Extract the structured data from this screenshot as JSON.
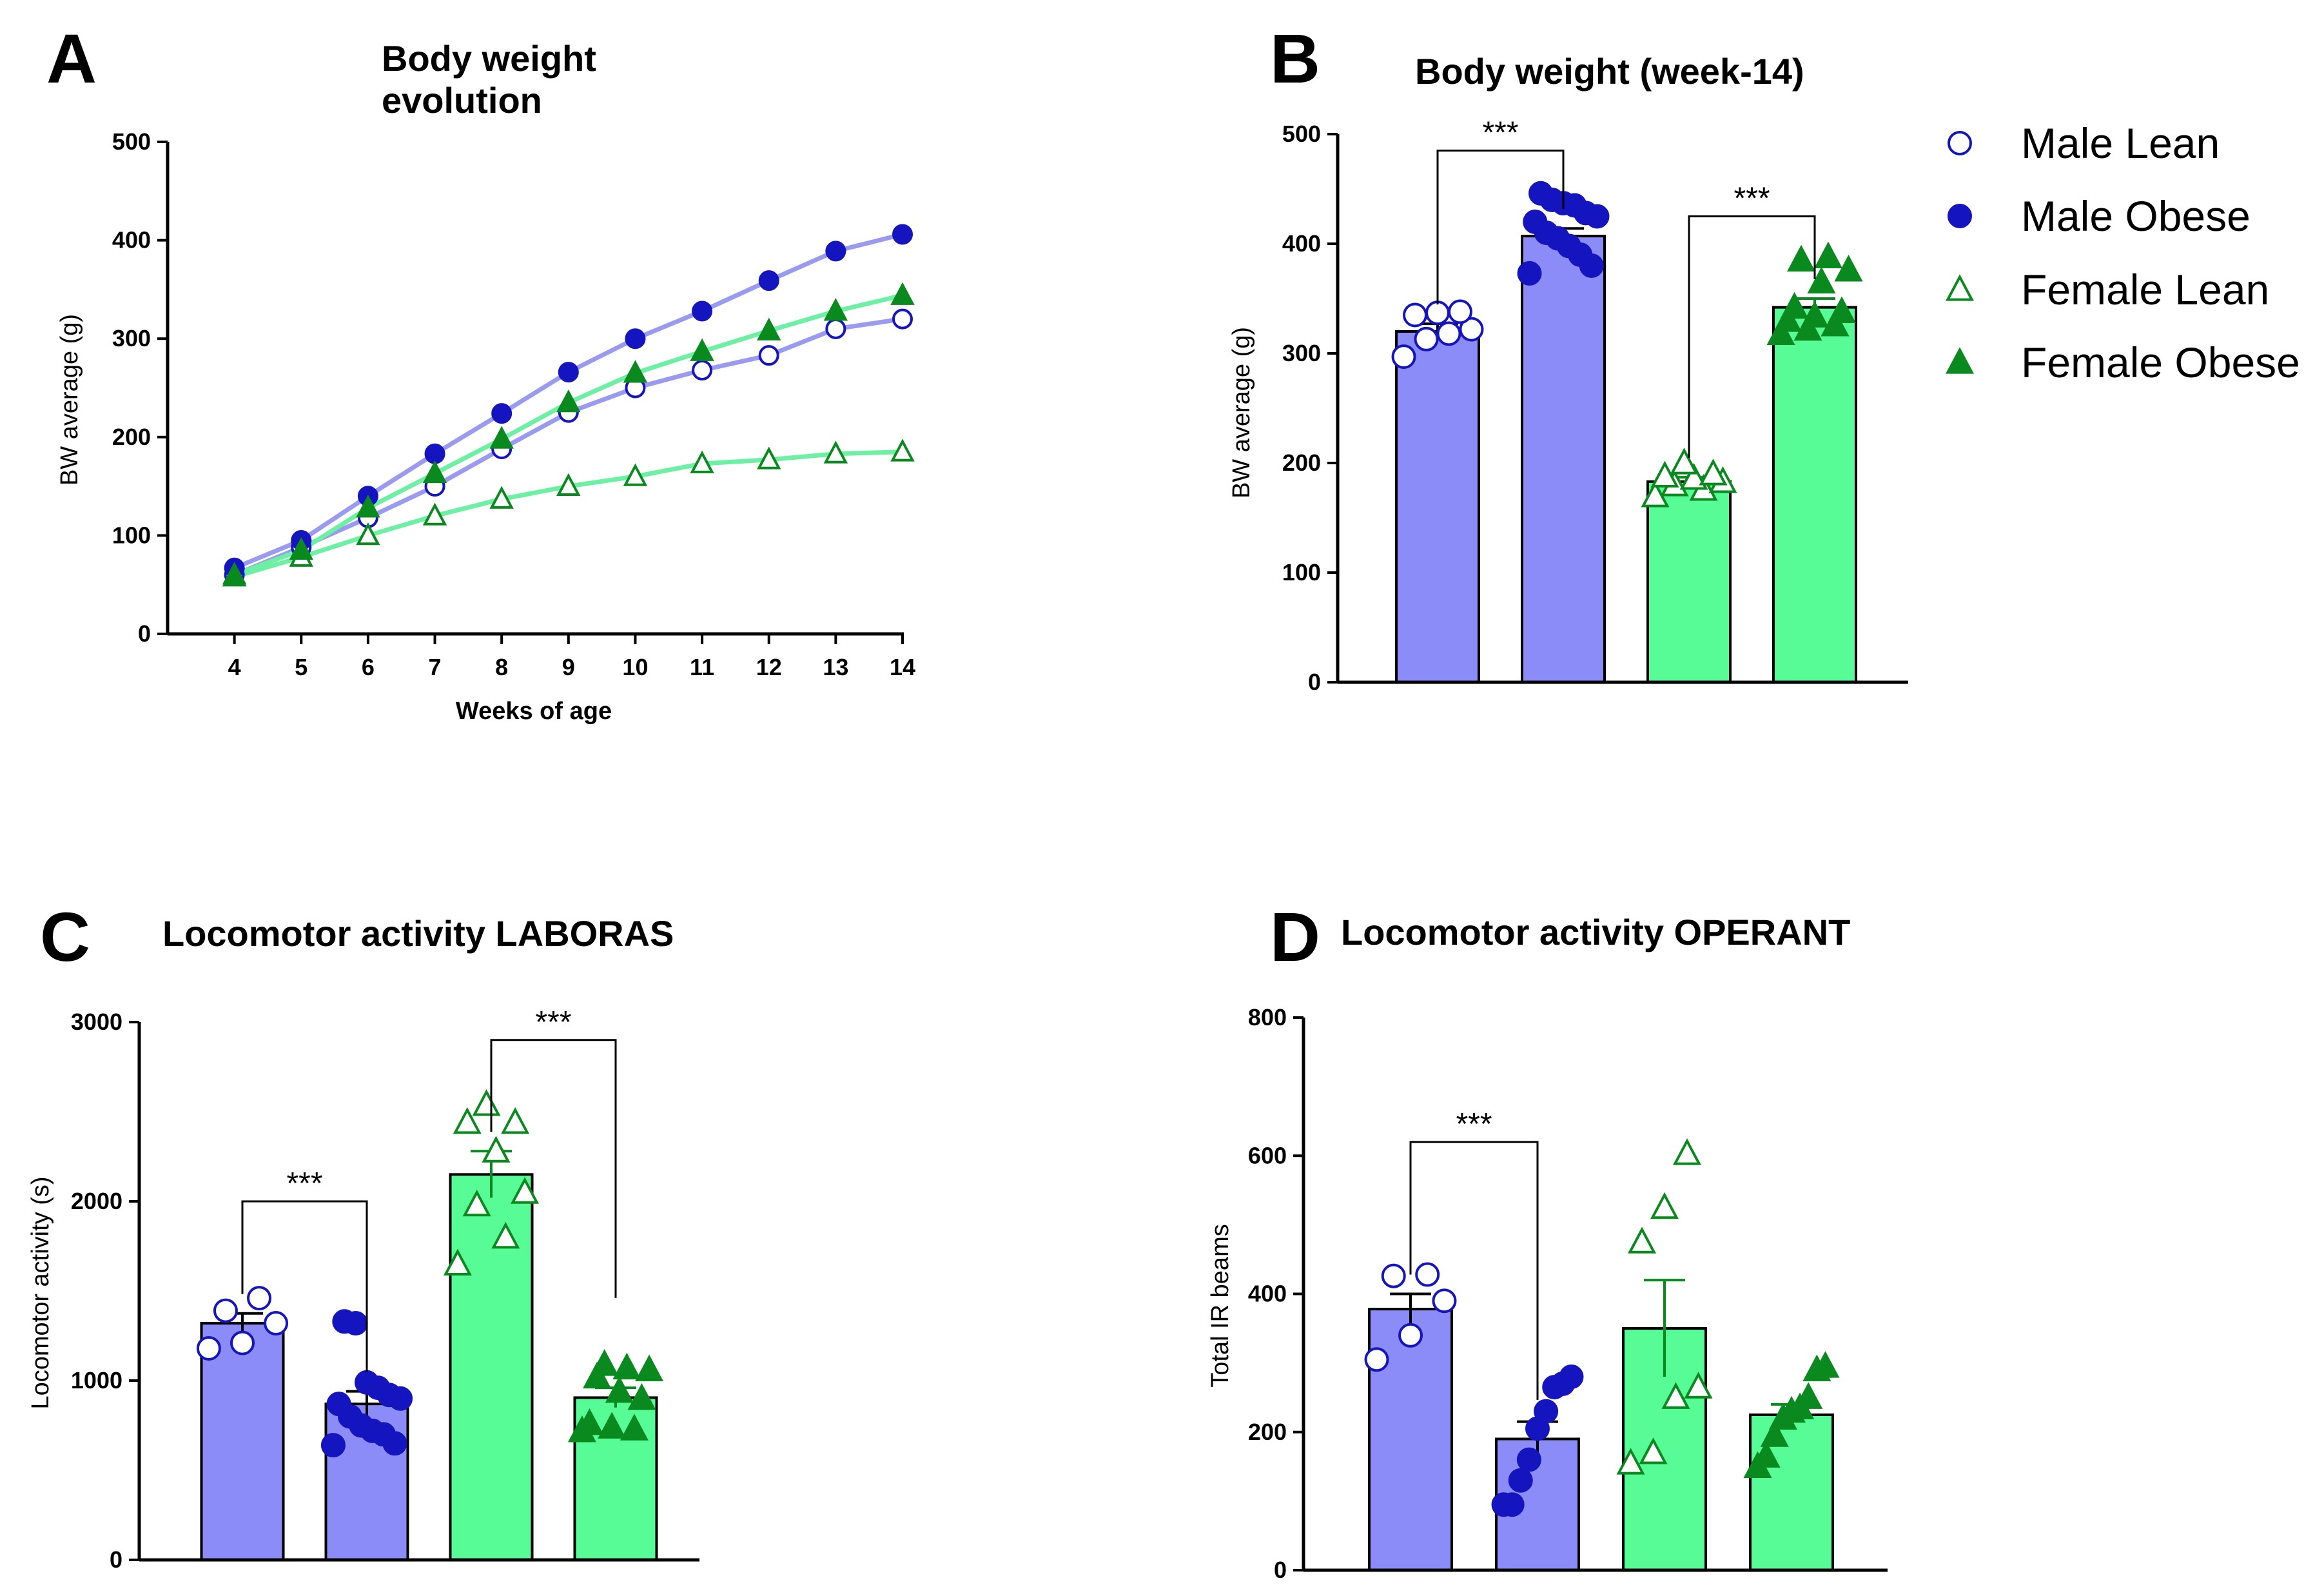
{
  "colors": {
    "male": "#1515c0",
    "female": "#0a8a1e",
    "male_bar": "#8c8cf8",
    "female_bar": "#57fc97",
    "male_line": "#9a9af0",
    "female_line": "#6ef0a4"
  },
  "legend": {
    "placement": "right of panel B",
    "items": [
      {
        "label": "Male Lean",
        "marker": "circle-open",
        "color": "#1515c0"
      },
      {
        "label": "Male Obese",
        "marker": "circle-filled",
        "color": "#1515c0"
      },
      {
        "label": "Female Lean",
        "marker": "triangle-open",
        "color": "#0a8a1e"
      },
      {
        "label": "Female Obese",
        "marker": "triangle-filled",
        "color": "#0a8a1e"
      }
    ]
  },
  "chart_data": [
    {
      "panel": "A",
      "type": "line",
      "title_lines": [
        "Body weight",
        "evolution"
      ],
      "xlabel": "Weeks of age",
      "ylabel": "BW average (g)",
      "x": [
        4,
        5,
        6,
        7,
        8,
        9,
        10,
        11,
        12,
        13,
        14
      ],
      "xlim": [
        3,
        14
      ],
      "ylim": [
        0,
        500
      ],
      "yticks": [
        0,
        100,
        200,
        300,
        400,
        500
      ],
      "series": [
        {
          "name": "Male Lean",
          "marker": "circle-open",
          "values": [
            60,
            88,
            118,
            150,
            188,
            225,
            250,
            268,
            283,
            310,
            320
          ]
        },
        {
          "name": "Male Obese",
          "marker": "circle-filled",
          "values": [
            67,
            95,
            140,
            183,
            224,
            266,
            300,
            328,
            359,
            389,
            406
          ]
        },
        {
          "name": "Female Lean",
          "marker": "triangle-open",
          "values": [
            58,
            78,
            100,
            120,
            137,
            150,
            160,
            173,
            177,
            183,
            185
          ]
        },
        {
          "name": "Female Obese",
          "marker": "triangle-filled",
          "values": [
            60,
            85,
            128,
            163,
            198,
            235,
            265,
            287,
            308,
            328,
            344
          ]
        }
      ]
    },
    {
      "panel": "B",
      "type": "bar",
      "title": "Body weight (week-14)",
      "ylabel": "BW average (g)",
      "ylim": [
        0,
        500
      ],
      "yticks": [
        0,
        100,
        200,
        300,
        400,
        500
      ],
      "bars": [
        {
          "group": "Male Lean",
          "mean": 320,
          "sem": 7,
          "points": [
            297,
            313,
            318,
            322,
            335,
            337,
            338
          ]
        },
        {
          "group": "Male Obese",
          "mean": 407,
          "sem": 7,
          "points": [
            373,
            380,
            390,
            398,
            405,
            410,
            420,
            425,
            428,
            435,
            437,
            440,
            446
          ]
        },
        {
          "group": "Female Lean",
          "mean": 183,
          "sem": 4,
          "points": [
            170,
            176,
            180,
            183,
            186,
            188,
            190,
            200
          ]
        },
        {
          "group": "Female Obese",
          "mean": 342,
          "sem": 8,
          "points": [
            318,
            322,
            326,
            330,
            334,
            338,
            342,
            365,
            376,
            385,
            388
          ]
        }
      ],
      "significance": [
        {
          "between": [
            0,
            1
          ],
          "label": "***",
          "y": 485
        },
        {
          "between": [
            2,
            3
          ],
          "label": "***",
          "y": 425
        }
      ]
    },
    {
      "panel": "C",
      "type": "bar",
      "title": "Locomotor activity LABORAS",
      "ylabel": "Locomotor activity (s)",
      "ylim": [
        0,
        3000
      ],
      "yticks": [
        0,
        1000,
        2000,
        3000
      ],
      "bars": [
        {
          "group": "Male Lean",
          "mean": 1320,
          "sem": 55,
          "points": [
            1180,
            1210,
            1320,
            1390,
            1460
          ]
        },
        {
          "group": "Male Obese",
          "mean": 870,
          "sem": 70,
          "points": [
            640,
            650,
            700,
            720,
            750,
            800,
            870,
            900,
            920,
            960,
            990,
            1320,
            1330
          ]
        },
        {
          "group": "Female Lean",
          "mean": 2150,
          "sem": 130,
          "points": [
            1650,
            1800,
            1980,
            2050,
            2280,
            2440,
            2440,
            2540
          ]
        },
        {
          "group": "Female Obese",
          "mean": 905,
          "sem": 55,
          "points": [
            720,
            730,
            740,
            760,
            900,
            940,
            1020,
            1060,
            1070,
            1090
          ]
        }
      ],
      "significance": [
        {
          "between": [
            0,
            1
          ],
          "label": "***",
          "y": 2000
        },
        {
          "between": [
            2,
            3
          ],
          "label": "***",
          "y": 2900
        }
      ]
    },
    {
      "panel": "D",
      "type": "bar",
      "title": "Locomotor activity OPERANT",
      "ylabel": "Total IR beams",
      "ylim": [
        0,
        800
      ],
      "yticks": [
        0,
        200,
        400,
        600,
        800
      ],
      "bars": [
        {
          "group": "Male Lean",
          "mean": 378,
          "sem": 22,
          "points": [
            305,
            340,
            390,
            426,
            428
          ]
        },
        {
          "group": "Male Obese",
          "mean": 190,
          "sem": 25,
          "points": [
            95,
            95,
            130,
            160,
            205,
            230,
            265,
            270,
            280
          ]
        },
        {
          "group": "Female Lean",
          "mean": 350,
          "sem": 70,
          "points": [
            155,
            170,
            250,
            265,
            475,
            525,
            603
          ]
        },
        {
          "group": "Female Obese",
          "mean": 225,
          "sem": 15,
          "points": [
            150,
            165,
            195,
            220,
            230,
            235,
            250,
            290,
            295
          ]
        }
      ],
      "significance": [
        {
          "between": [
            0,
            1
          ],
          "label": "***",
          "y": 620
        }
      ]
    }
  ]
}
